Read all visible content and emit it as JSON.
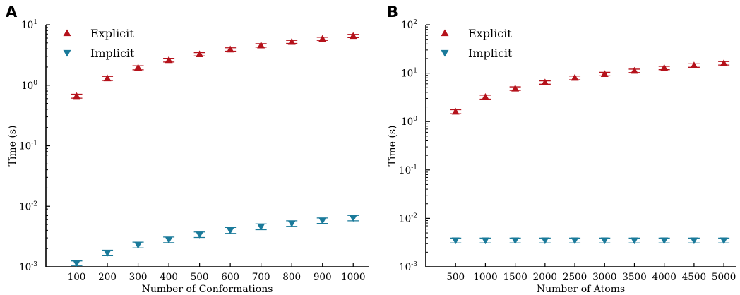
{
  "colors": {
    "explicit": "#b5121b",
    "implicit": "#1a7a9a"
  },
  "chart_data": [
    {
      "panel": "A",
      "type": "scatter",
      "xlabel": "Number of Conformations",
      "ylabel": "Time (s)",
      "yscale": "log",
      "ylim": [
        0.001,
        10
      ],
      "xlim": [
        0,
        1050
      ],
      "x_ticks": [
        100,
        200,
        300,
        400,
        500,
        600,
        700,
        800,
        900,
        1000
      ],
      "y_ticks": [
        {
          "base": "10",
          "exp": "-3",
          "value": 0.001
        },
        {
          "base": "10",
          "exp": "-2",
          "value": 0.01
        },
        {
          "base": "10",
          "exp": "-1",
          "value": 0.1
        },
        {
          "base": "10",
          "exp": "0",
          "value": 1
        },
        {
          "base": "10",
          "exp": "1",
          "value": 10
        }
      ],
      "legend": {
        "position": "top-left",
        "entries": [
          "Explicit",
          "Implicit"
        ]
      },
      "series": [
        {
          "name": "Explicit",
          "marker": "triangle-up",
          "x": [
            100,
            200,
            300,
            400,
            500,
            600,
            700,
            800,
            900,
            1000
          ],
          "y": [
            0.66,
            1.3,
            1.95,
            2.6,
            3.25,
            3.9,
            4.55,
            5.2,
            5.85,
            6.5
          ],
          "err": [
            0.05,
            0.1,
            0.15,
            0.18,
            0.2,
            0.25,
            0.3,
            0.3,
            0.35,
            0.4
          ]
        },
        {
          "name": "Implicit",
          "marker": "triangle-down",
          "x": [
            100,
            200,
            300,
            400,
            500,
            600,
            700,
            800,
            900,
            1000
          ],
          "y": [
            0.00115,
            0.0017,
            0.0023,
            0.0028,
            0.0034,
            0.004,
            0.0046,
            0.0052,
            0.0058,
            0.0064
          ],
          "err": [
            0.0001,
            0.00018,
            0.00025,
            0.0003,
            0.00035,
            0.00045,
            0.0005,
            0.00055,
            0.0006,
            0.00065
          ]
        }
      ]
    },
    {
      "panel": "B",
      "type": "scatter",
      "xlabel": "Number of Atoms",
      "ylabel": "Time (s)",
      "yscale": "log",
      "ylim": [
        0.001,
        100
      ],
      "xlim": [
        0,
        5200
      ],
      "x_ticks": [
        500,
        1000,
        1500,
        2000,
        2500,
        3000,
        3500,
        4000,
        4500,
        5000
      ],
      "y_ticks": [
        {
          "base": "10",
          "exp": "-3",
          "value": 0.001
        },
        {
          "base": "10",
          "exp": "-2",
          "value": 0.01
        },
        {
          "base": "10",
          "exp": "-1",
          "value": 0.1
        },
        {
          "base": "10",
          "exp": "0",
          "value": 1
        },
        {
          "base": "10",
          "exp": "1",
          "value": 10
        },
        {
          "base": "10",
          "exp": "2",
          "value": 100
        }
      ],
      "legend": {
        "position": "top-left",
        "entries": [
          "Explicit",
          "Implicit"
        ]
      },
      "series": [
        {
          "name": "Explicit",
          "marker": "triangle-up",
          "x": [
            500,
            1000,
            1500,
            2000,
            2500,
            3000,
            3500,
            4000,
            4500,
            5000
          ],
          "y": [
            1.6,
            3.2,
            4.8,
            6.4,
            8.0,
            9.6,
            11.2,
            12.8,
            14.4,
            16.0
          ],
          "err": [
            0.15,
            0.3,
            0.4,
            0.5,
            0.7,
            0.8,
            0.9,
            1.0,
            1.2,
            1.3
          ]
        },
        {
          "name": "Implicit",
          "marker": "triangle-down",
          "x": [
            500,
            1000,
            1500,
            2000,
            2500,
            3000,
            3500,
            4000,
            4500,
            5000
          ],
          "y": [
            0.0035,
            0.0035,
            0.0035,
            0.0035,
            0.0035,
            0.0035,
            0.0035,
            0.0035,
            0.0035,
            0.0035
          ],
          "err": [
            0.0004,
            0.0004,
            0.0004,
            0.0004,
            0.0004,
            0.0004,
            0.0004,
            0.0004,
            0.0004,
            0.0004
          ]
        }
      ]
    }
  ]
}
